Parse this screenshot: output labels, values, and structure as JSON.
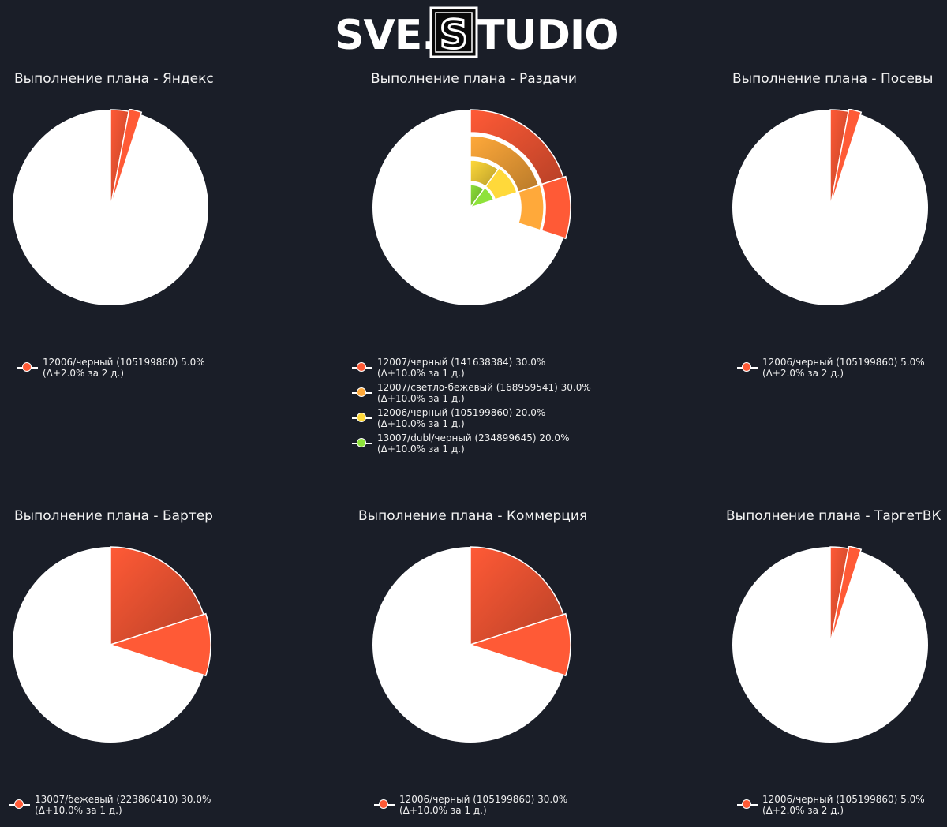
{
  "logo": {
    "left_text": "SVE.",
    "mid_letter": "S",
    "right_text": "TUDIO"
  },
  "colors": {
    "background": "#1a1e28",
    "pie_base": "#ffffff",
    "series": [
      "#ff5a36",
      "#ffa93a",
      "#ffd93a",
      "#8ee23a"
    ]
  },
  "chart_data": [
    {
      "type": "pie",
      "title": "Выполнение плана - Яндекс",
      "series": [
        {
          "name": "12006/черный (105199860) 5.0%",
          "delta": "(Δ+2.0% за 2 д.)",
          "value": 5.0,
          "delta_value": 2.0,
          "color": "#ff5a36"
        }
      ]
    },
    {
      "type": "pie",
      "title": "Выполнение плана - Раздачи",
      "series": [
        {
          "name": "12007/черный (141638384) 30.0%",
          "delta": "(Δ+10.0% за 1 д.)",
          "value": 30.0,
          "delta_value": 10.0,
          "color": "#ff5a36"
        },
        {
          "name": "12007/светло-бежевый (168959541) 30.0%",
          "delta": "(Δ+10.0% за 1 д.)",
          "value": 30.0,
          "delta_value": 10.0,
          "color": "#ffa93a"
        },
        {
          "name": "12006/черный (105199860) 20.0%",
          "delta": "(Δ+10.0% за 1 д.)",
          "value": 20.0,
          "delta_value": 10.0,
          "color": "#ffd93a"
        },
        {
          "name": "13007/dubl/черный (234899645) 20.0%",
          "delta": "(Δ+10.0% за 1 д.)",
          "value": 20.0,
          "delta_value": 10.0,
          "color": "#8ee23a"
        }
      ]
    },
    {
      "type": "pie",
      "title": "Выполнение плана - Посевы",
      "series": [
        {
          "name": "12006/черный (105199860) 5.0%",
          "delta": "(Δ+2.0% за 2 д.)",
          "value": 5.0,
          "delta_value": 2.0,
          "color": "#ff5a36"
        }
      ]
    },
    {
      "type": "pie",
      "title": "Выполнение плана - Бартер",
      "series": [
        {
          "name": "13007/бежевый (223860410) 30.0%",
          "delta": "(Δ+10.0% за 1 д.)",
          "value": 30.0,
          "delta_value": 10.0,
          "color": "#ff5a36"
        }
      ]
    },
    {
      "type": "pie",
      "title": "Выполнение плана - Коммерция",
      "series": [
        {
          "name": "12006/черный (105199860) 30.0%",
          "delta": "(Δ+10.0% за 1 д.)",
          "value": 30.0,
          "delta_value": 10.0,
          "color": "#ff5a36"
        }
      ]
    },
    {
      "type": "pie",
      "title": "Выполнение плана - ТаргетВК",
      "series": [
        {
          "name": "12006/черный (105199860) 5.0%",
          "delta": "(Δ+2.0% за 2 д.)",
          "value": 5.0,
          "delta_value": 2.0,
          "color": "#ff5a36"
        }
      ]
    }
  ]
}
